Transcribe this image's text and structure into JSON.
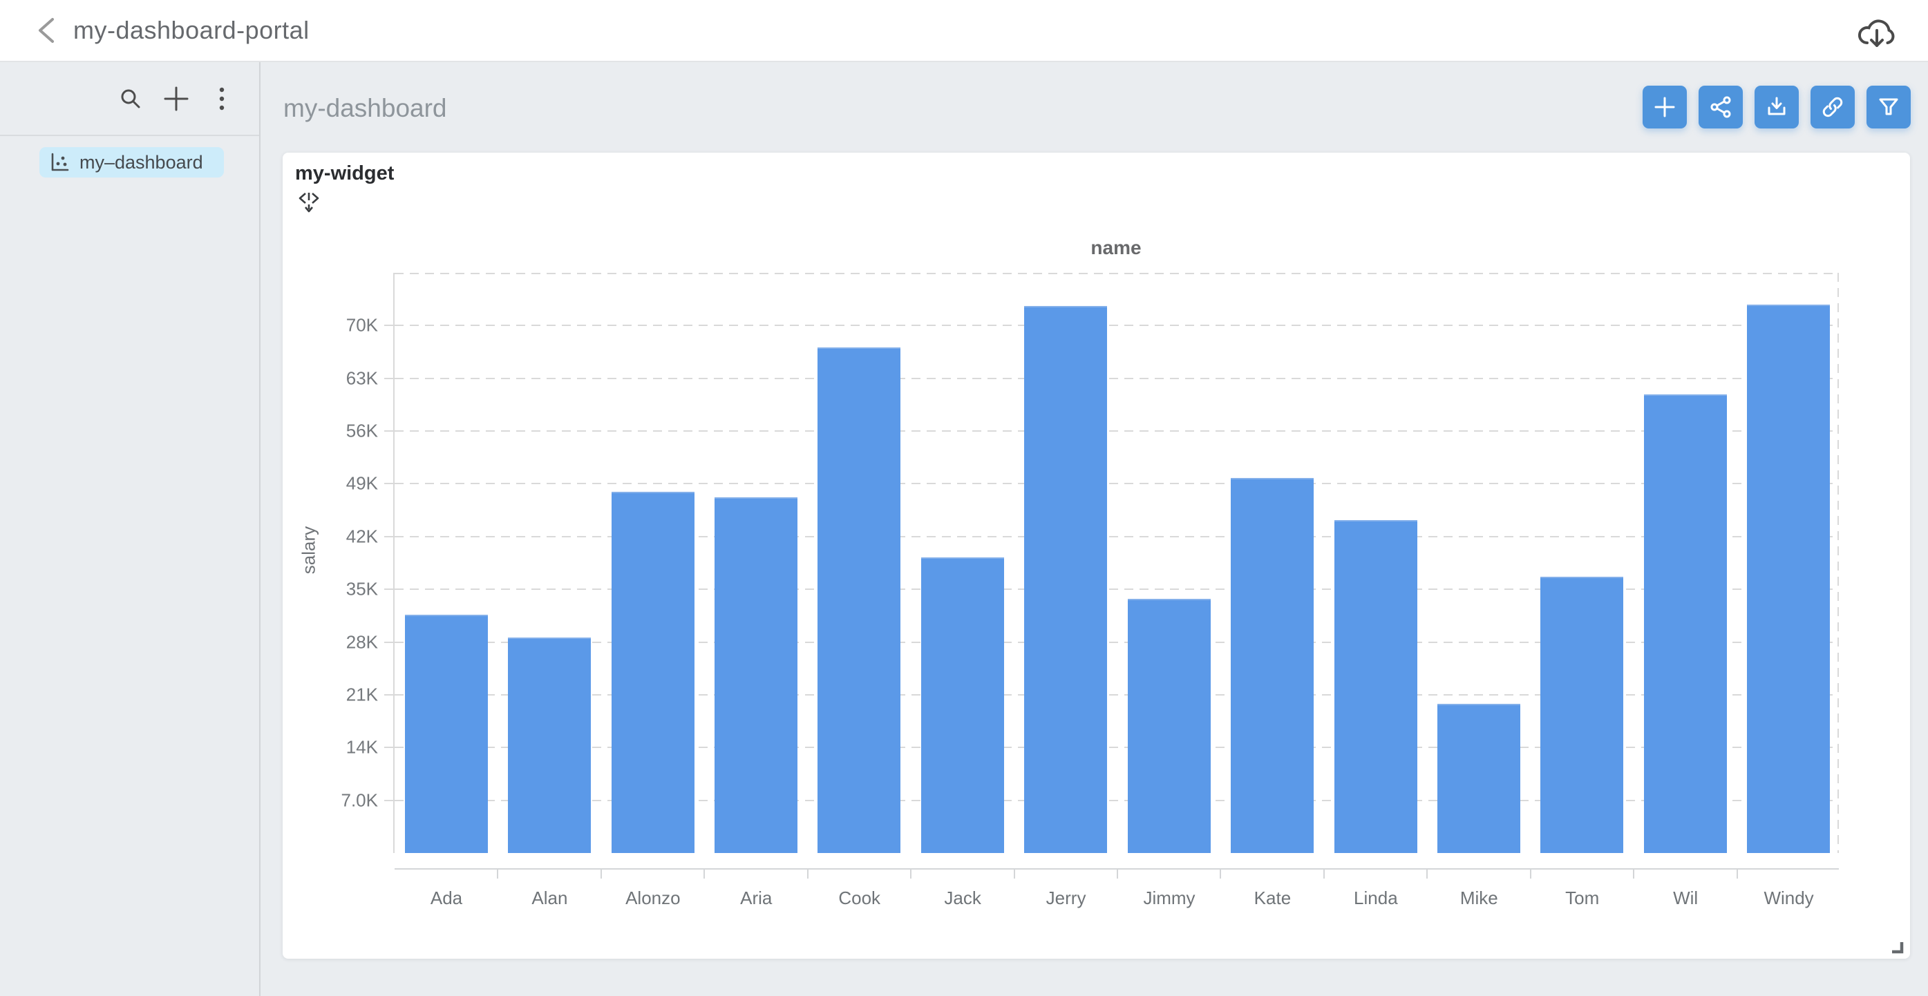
{
  "header": {
    "title": "my-dashboard-portal"
  },
  "sidebar": {
    "tools": [
      {
        "name": "search",
        "icon": "search-icon"
      },
      {
        "name": "add",
        "icon": "plus-icon"
      },
      {
        "name": "more",
        "icon": "kebab-menu-icon"
      }
    ],
    "items": [
      {
        "label": "my–dashboard",
        "icon": "chart-icon",
        "selected": true
      }
    ]
  },
  "main": {
    "title": "my-dashboard",
    "toolbar": [
      {
        "name": "add-widget",
        "icon": "plus-icon"
      },
      {
        "name": "share",
        "icon": "share-icon"
      },
      {
        "name": "export",
        "icon": "download-icon"
      },
      {
        "name": "link",
        "icon": "link-icon"
      },
      {
        "name": "filter",
        "icon": "funnel-icon"
      }
    ]
  },
  "widget": {
    "title": "my-widget"
  },
  "chart_data": {
    "type": "bar",
    "title": "name",
    "xlabel": "name",
    "ylabel": "salary",
    "categories": [
      "Ada",
      "Alan",
      "Alonzo",
      "Aria",
      "Cook",
      "Jack",
      "Jerry",
      "Jimmy",
      "Kate",
      "Linda",
      "Mike",
      "Tom",
      "Wil",
      "Windy"
    ],
    "values": [
      31600,
      28600,
      47900,
      47200,
      67100,
      39200,
      72600,
      33700,
      49800,
      44200,
      19800,
      36700,
      60900,
      72800
    ],
    "ylim": [
      0,
      77000
    ],
    "yticks": [
      {
        "v": 7000,
        "label": "7.0K"
      },
      {
        "v": 14000,
        "label": "14K"
      },
      {
        "v": 21000,
        "label": "21K"
      },
      {
        "v": 28000,
        "label": "28K"
      },
      {
        "v": 35000,
        "label": "35K"
      },
      {
        "v": 42000,
        "label": "42K"
      },
      {
        "v": 49000,
        "label": "49K"
      },
      {
        "v": 56000,
        "label": "56K"
      },
      {
        "v": 63000,
        "label": "63K"
      },
      {
        "v": 70000,
        "label": "70K"
      }
    ],
    "grid": "dashed-horizontal",
    "legend": "none",
    "bar_color": "#5b99e8",
    "accent_color": "#4e94dc",
    "selection_color": "#cdecfa"
  }
}
